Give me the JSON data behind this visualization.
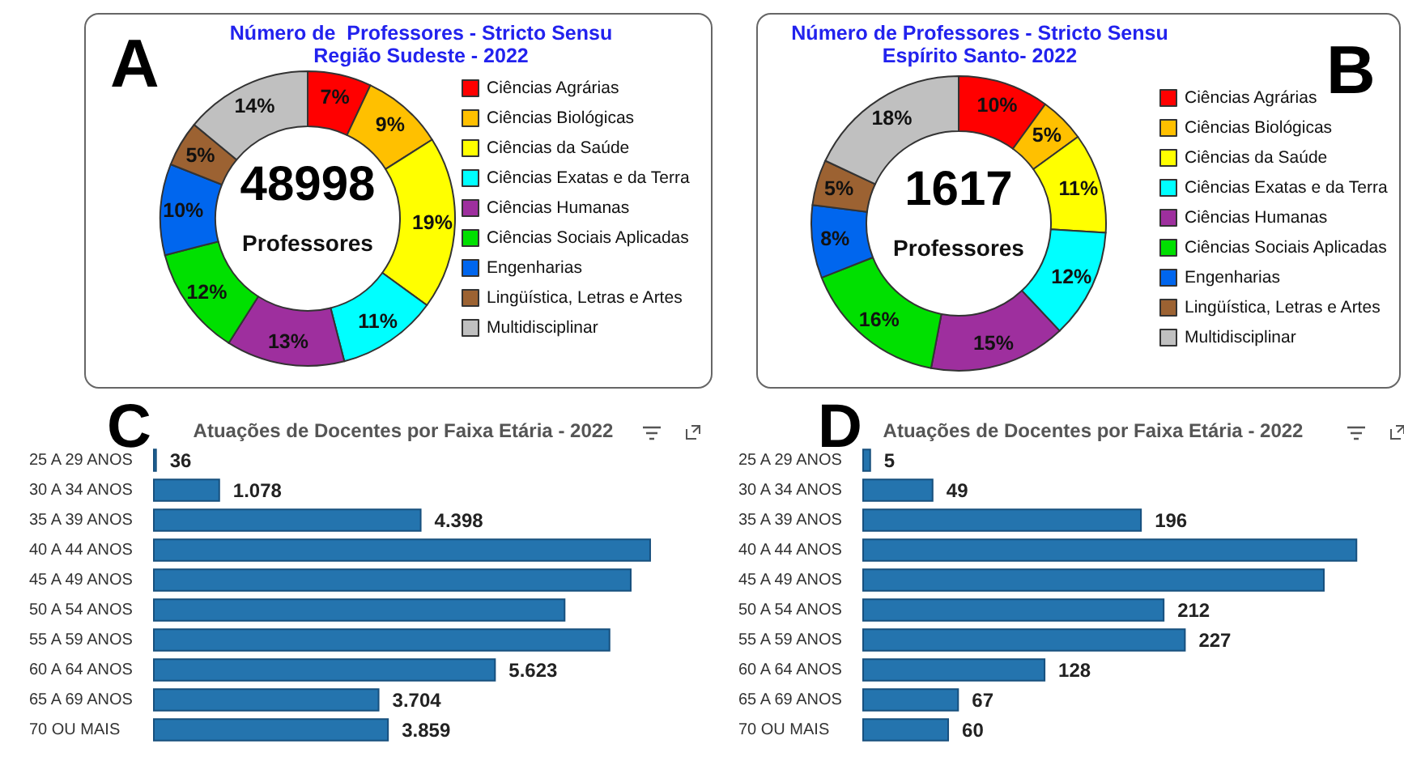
{
  "chart_data": [
    {
      "type": "donut",
      "title": "Número de  Professores - Stricto Sensu",
      "subtitle": "Região Sudeste - 2022",
      "categories": [
        "Ciências Agrárias",
        "Ciências Biológicas",
        "Ciências da Saúde",
        "Ciências Exatas e da Terra",
        "Ciências Humanas",
        "Ciências Sociais Aplicadas",
        "Engenharias",
        "Lingüística, Letras e Artes",
        "Multidisciplinar"
      ],
      "values": [
        7,
        9,
        19,
        11,
        13,
        12,
        10,
        5,
        14
      ],
      "value_labels": [
        "7%",
        "9%",
        "19%",
        "11%",
        "13%",
        "12%",
        "10%",
        "5%",
        "14%"
      ],
      "colors": [
        "#ff0000",
        "#ffc000",
        "#ffff00",
        "#00ffff",
        "#9e2f9e",
        "#00e000",
        "#0066ee",
        "#9c6232",
        "#c0c0c0"
      ],
      "legend": "right",
      "annotations": [
        "A",
        "48998",
        "Professores"
      ]
    },
    {
      "type": "donut",
      "title": "Número de Professores - Stricto Sensu",
      "subtitle": "Espírito Santo- 2022",
      "categories": [
        "Ciências Agrárias",
        "Ciências Biológicas",
        "Ciências da Saúde",
        "Ciências Exatas e da Terra",
        "Ciências Humanas",
        "Ciências Sociais Aplicadas",
        "Engenharias",
        "Lingüística, Letras e Artes",
        "Multidisciplinar"
      ],
      "values": [
        10,
        5,
        11,
        12,
        15,
        16,
        8,
        5,
        18
      ],
      "value_labels": [
        "10%",
        "5%",
        "11%",
        "12%",
        "15%",
        "16%",
        "8%",
        "5%",
        "18%"
      ],
      "colors": [
        "#ff0000",
        "#ffc000",
        "#ffff00",
        "#00ffff",
        "#9e2f9e",
        "#00e000",
        "#0066ee",
        "#9c6232",
        "#c0c0c0"
      ],
      "legend": "right",
      "annotations": [
        "B",
        "1617",
        "Professores"
      ]
    },
    {
      "type": "bar",
      "orientation": "horizontal",
      "title": "Atuações de Docentes por Faixa Etária - 2022",
      "categories": [
        "25 A 29 ANOS",
        "30 A 34 ANOS",
        "35 A 39 ANOS",
        "40 A 44 ANOS",
        "45 A 49 ANOS",
        "50 A 54 ANOS",
        "55 A 59 ANOS",
        "60 A 64 ANOS",
        "65 A 69 ANOS",
        "70 OU MAIS"
      ],
      "values": [
        36,
        1078,
        4398,
        8180,
        7860,
        6770,
        7510,
        5623,
        3704,
        3859
      ],
      "value_labels": [
        "36",
        "1.078",
        "4.398",
        null,
        null,
        null,
        null,
        "5.623",
        "3.704",
        "3.859"
      ],
      "color": "#2474ae",
      "tick_labels": "y",
      "annotations": [
        "C"
      ]
    },
    {
      "type": "bar",
      "orientation": "horizontal",
      "title": "Atuações de Docentes por Faixa Etária - 2022",
      "categories": [
        "25 A 29 ANOS",
        "30 A 34 ANOS",
        "35 A 39 ANOS",
        "40 A 44 ANOS",
        "45 A 49 ANOS",
        "50 A 54 ANOS",
        "55 A 59 ANOS",
        "60 A 64 ANOS",
        "65 A 69 ANOS",
        "70 OU MAIS"
      ],
      "values": [
        5,
        49,
        196,
        348,
        325,
        212,
        227,
        128,
        67,
        60
      ],
      "value_labels": [
        "5",
        "49",
        "196",
        null,
        null,
        "212",
        "227",
        "128",
        "67",
        "60"
      ],
      "color": "#2474ae",
      "tick_labels": "y",
      "annotations": [
        "D"
      ]
    }
  ]
}
